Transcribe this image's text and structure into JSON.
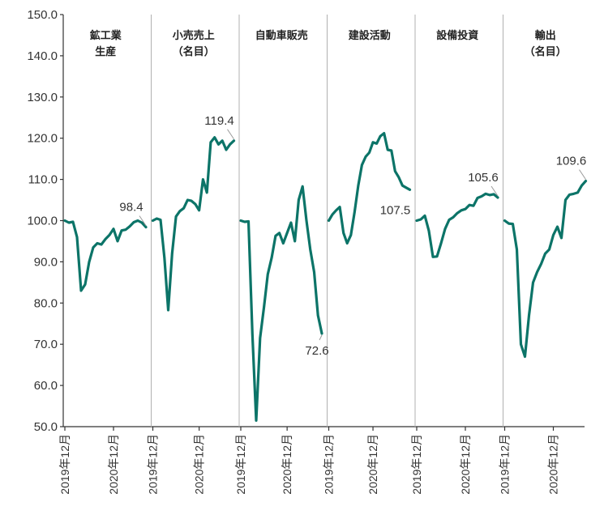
{
  "chart_data": {
    "type": "line",
    "ylim": [
      50,
      150
    ],
    "yticks": [
      "150.0",
      "140.0",
      "130.0",
      "120.0",
      "110.0",
      "100.0",
      "90.0",
      "80.0",
      "70.0",
      "60.0",
      "50.0"
    ],
    "xtick_labels": [
      "2019年12月",
      "2020年12月"
    ],
    "color": "#0c7468",
    "panels": [
      {
        "title_lines": [
          "鉱工業",
          "生産"
        ],
        "last_label": "98.4",
        "values": [
          100,
          99.5,
          99.7,
          96,
          83,
          84.5,
          90,
          93.5,
          94.5,
          94.2,
          95.5,
          96.5,
          98,
          95,
          97.6,
          97.8,
          98.6,
          99.6,
          100,
          99.5,
          98.4
        ]
      },
      {
        "title_lines": [
          "小売売上",
          "（名目）"
        ],
        "last_label": "119.4",
        "values": [
          100,
          100.5,
          100.2,
          91,
          78.3,
          92,
          101,
          102.3,
          103,
          105,
          104.8,
          104,
          102.5,
          110,
          106.8,
          119,
          120.2,
          118.5,
          119.4,
          117.2,
          118.5,
          119.4
        ]
      },
      {
        "title_lines": [
          "自動車販売"
        ],
        "last_label": "72.6",
        "values": [
          100,
          99.7,
          99.8,
          72.5,
          51.5,
          71.5,
          79,
          87,
          91,
          96.3,
          97,
          94.5,
          97,
          99.5,
          95,
          105,
          108.3,
          100,
          93,
          87.5,
          77,
          72.6
        ]
      },
      {
        "title_lines": [
          "建設活動"
        ],
        "last_label": "107.5",
        "values": [
          100,
          101.5,
          102.5,
          103.3,
          97,
          94.5,
          96.5,
          102,
          108.5,
          113.5,
          115.5,
          116.5,
          119,
          118.7,
          120.5,
          121.2,
          117.2,
          117,
          112,
          110.5,
          108.5,
          108,
          107.5
        ]
      },
      {
        "title_lines": [
          "設備投資"
        ],
        "last_label": "105.6",
        "values": [
          100,
          100.3,
          101.2,
          97.5,
          91.2,
          91.3,
          94.5,
          98,
          100.2,
          100.8,
          101.8,
          102.5,
          102.8,
          103.8,
          103.6,
          105.5,
          105.9,
          106.5,
          106.2,
          106.4,
          105.6
        ]
      },
      {
        "title_lines": [
          "輸出",
          "（名目）"
        ],
        "last_label": "109.6",
        "values": [
          100,
          99.3,
          99.2,
          93,
          70,
          67,
          77,
          85,
          87.5,
          89.5,
          92,
          93,
          96.5,
          98.5,
          95.8,
          105,
          106.3,
          106.5,
          106.8,
          108.5,
          109.6
        ]
      }
    ]
  }
}
